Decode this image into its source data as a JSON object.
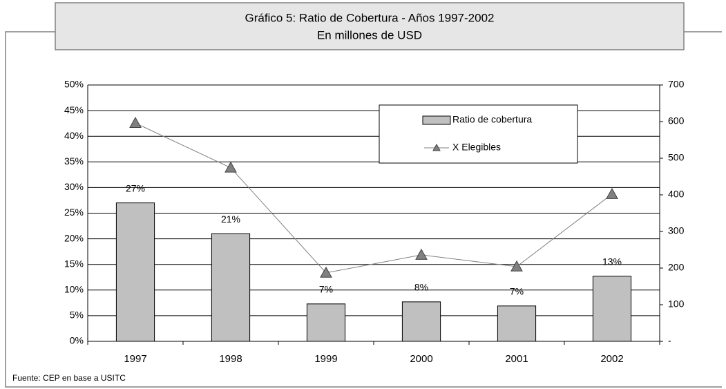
{
  "chart_data": {
    "type": "bar_line",
    "title": "Gráfico 5: Ratio de Cobertura - Años 1997-2002",
    "subtitle": "En millones de USD",
    "source": "Fuente: CEP en base a USITC",
    "categories": [
      "1997",
      "1998",
      "1999",
      "2000",
      "2001",
      "2002"
    ],
    "series": [
      {
        "name": "Ratio de cobertura",
        "type": "bar",
        "color": "#c0c0c0",
        "values": [
          27,
          21,
          7.3,
          7.7,
          6.9,
          12.7
        ],
        "value_labels": [
          "27%",
          "21%",
          "7%",
          "8%",
          "7%",
          "13%"
        ]
      },
      {
        "name": "X Elegibles",
        "type": "line",
        "axis": "y2",
        "color": "#808080",
        "values": [
          596,
          474,
          187,
          236,
          204,
          402
        ]
      }
    ],
    "ylim": [
      0,
      50
    ],
    "yticks": [
      {
        "value": 0,
        "label": "0%"
      },
      {
        "value": 5,
        "label": "5%"
      },
      {
        "value": 10,
        "label": "10%"
      },
      {
        "value": 15,
        "label": "15%"
      },
      {
        "value": 20,
        "label": "20%"
      },
      {
        "value": 25,
        "label": "25%"
      },
      {
        "value": 30,
        "label": "30%"
      },
      {
        "value": 35,
        "label": "35%"
      },
      {
        "value": 40,
        "label": "40%"
      },
      {
        "value": 45,
        "label": "45%"
      },
      {
        "value": 50,
        "label": "50%"
      }
    ],
    "y2lim": [
      0,
      700
    ],
    "y2ticks": [
      {
        "value": 0,
        "label": "-"
      },
      100,
      200,
      300,
      400,
      500,
      600,
      700
    ],
    "grid": true,
    "legend": "top-right"
  }
}
